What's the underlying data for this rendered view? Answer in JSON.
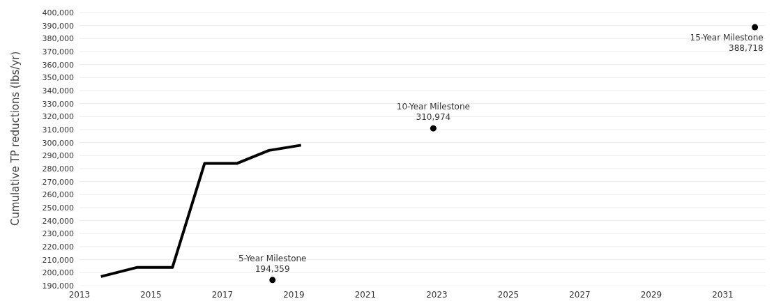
{
  "chart_data": {
    "type": "line",
    "ylabel": "Cumulative TP reductions (lbs/yr)",
    "xlim": [
      2013,
      2032.2
    ],
    "xticks": [
      2013,
      2015,
      2017,
      2019,
      2021,
      2023,
      2025,
      2027,
      2029,
      2031
    ],
    "ylim": [
      190000,
      400000
    ],
    "yticks": [
      {
        "value": 190000,
        "label": "190,000"
      },
      {
        "value": 200000,
        "label": "200,000"
      },
      {
        "value": 210000,
        "label": "210,000"
      },
      {
        "value": 220000,
        "label": "220,000"
      },
      {
        "value": 230000,
        "label": "230,000"
      },
      {
        "value": 240000,
        "label": "240,000"
      },
      {
        "value": 250000,
        "label": "250,000"
      },
      {
        "value": 260000,
        "label": "260,000"
      },
      {
        "value": 270000,
        "label": "270,000"
      },
      {
        "value": 280000,
        "label": "280,000"
      },
      {
        "value": 290000,
        "label": "290,000"
      },
      {
        "value": 300000,
        "label": "300,000"
      },
      {
        "value": 310000,
        "label": "310,000"
      },
      {
        "value": 320000,
        "label": "320,000"
      },
      {
        "value": 330000,
        "label": "330,000"
      },
      {
        "value": 340000,
        "label": "340,000"
      },
      {
        "value": 350000,
        "label": "350,000"
      },
      {
        "value": 360000,
        "label": "360,000"
      },
      {
        "value": 370000,
        "label": "370,000"
      },
      {
        "value": 380000,
        "label": "380,000"
      },
      {
        "value": 390000,
        "label": "390,000"
      },
      {
        "value": 400000,
        "label": "400,000"
      }
    ],
    "grid": "y",
    "line_style": "solid",
    "series": [
      {
        "color": "#000000",
        "marker": "none",
        "x": [
          2013.6,
          2014.6,
          2015.6,
          2016.5,
          2017.4,
          2018.3,
          2019.2
        ],
        "values": [
          197000,
          204000,
          204000,
          284000,
          284000,
          294000,
          298000
        ]
      },
      {
        "type": "scatter",
        "color": "#000000",
        "marker": "circle",
        "x": [
          2018.4,
          2022.9,
          2031.9
        ],
        "values": [
          194359,
          310974,
          388718
        ],
        "value_labels": [
          "194,359",
          "310,974",
          "388,718"
        ]
      }
    ],
    "annotations": [
      {
        "text": "5-Year Milestone",
        "x": 2018.4,
        "y": 194359
      },
      {
        "text": "10-Year Milestone",
        "x": 2022.9,
        "y": 310974
      },
      {
        "text": "15-Year Milestone",
        "x": 2031.9,
        "y": 388718
      }
    ]
  }
}
